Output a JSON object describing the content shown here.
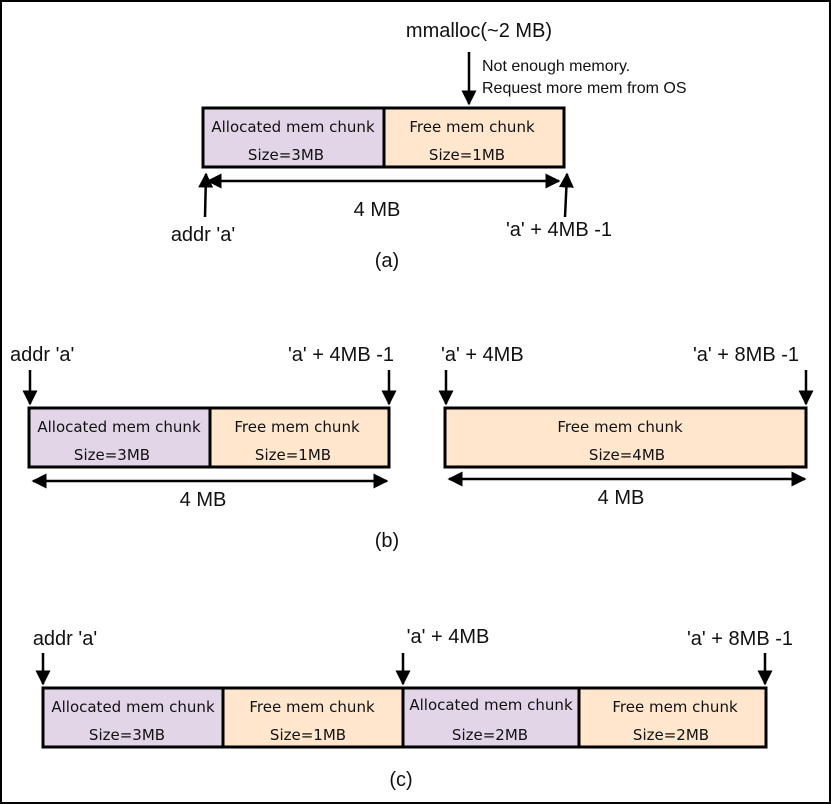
{
  "colors": {
    "allocated": "#e1d5e7",
    "free": "#ffe6cc",
    "stroke": "#000000"
  },
  "a": {
    "call": "mmalloc(~2 MB)",
    "note_line1": "Not enough memory.",
    "note_line2": "Request more mem from OS",
    "chunk1_label": "Allocated mem chunk",
    "chunk1_size": "Size=3MB",
    "chunk2_label": "Free mem chunk",
    "chunk2_size": "Size=1MB",
    "span": "4 MB",
    "start_addr": "addr 'a'",
    "end_addr": "'a' + 4MB -1",
    "caption": "(a)"
  },
  "b": {
    "left_start_addr": "addr 'a'",
    "left_end_addr": "'a' + 4MB -1",
    "left_chunk1_label": "Allocated mem chunk",
    "left_chunk1_size": "Size=3MB",
    "left_chunk2_label": "Free mem chunk",
    "left_chunk2_size": "Size=1MB",
    "left_span": "4 MB",
    "right_start_addr": "'a' + 4MB",
    "right_end_addr": "'a' + 8MB -1",
    "right_chunk_label": "Free mem chunk",
    "right_chunk_size": "Size=4MB",
    "right_span": "4 MB",
    "caption": "(b)"
  },
  "c": {
    "start_addr": "addr 'a'",
    "mid_addr": "'a' + 4MB",
    "end_addr": "'a' + 8MB -1",
    "chunk1_label": "Allocated mem chunk",
    "chunk1_size": "Size=3MB",
    "chunk2_label": "Free mem chunk",
    "chunk2_size": "Size=1MB",
    "chunk3_label": "Allocated mem chunk",
    "chunk3_size": "Size=2MB",
    "chunk4_label": "Free mem chunk",
    "chunk4_size": "Size=2MB",
    "caption": "(c)"
  }
}
